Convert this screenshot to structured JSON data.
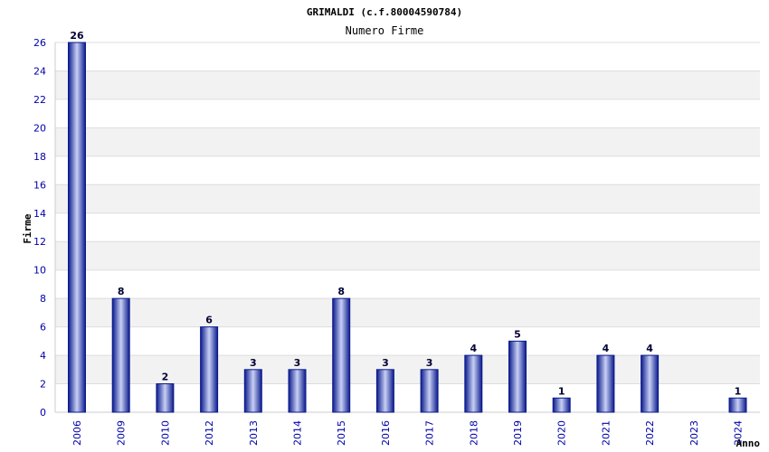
{
  "chart_data": {
    "type": "bar",
    "title": "GRIMALDI (c.f.80004590784)",
    "subtitle": "Numero Firme",
    "ylabel": "Firme",
    "xlabel": "Anno",
    "ylim": [
      0,
      26
    ],
    "yticks": [
      0,
      2,
      4,
      6,
      8,
      10,
      12,
      14,
      16,
      18,
      20,
      22,
      24,
      26
    ],
    "grid": "horizontal bands",
    "categories": [
      "2006",
      "2009",
      "2010",
      "2012",
      "2013",
      "2014",
      "2015",
      "2016",
      "2017",
      "2018",
      "2019",
      "2020",
      "2021",
      "2022",
      "2023",
      "2024"
    ],
    "values": [
      26,
      8,
      2,
      6,
      3,
      3,
      8,
      3,
      3,
      4,
      5,
      1,
      4,
      4,
      0,
      1
    ],
    "value_labels": [
      "26",
      "8",
      "2",
      "6",
      "3",
      "3",
      "8",
      "3",
      "3",
      "4",
      "5",
      "1",
      "4",
      "4",
      "",
      "1"
    ],
    "colors": {
      "bar_dark": "#0a1a8c",
      "bar_light": "#c8d0f4",
      "band": "#f2f2f2",
      "tick_text": "#0000aa"
    }
  }
}
